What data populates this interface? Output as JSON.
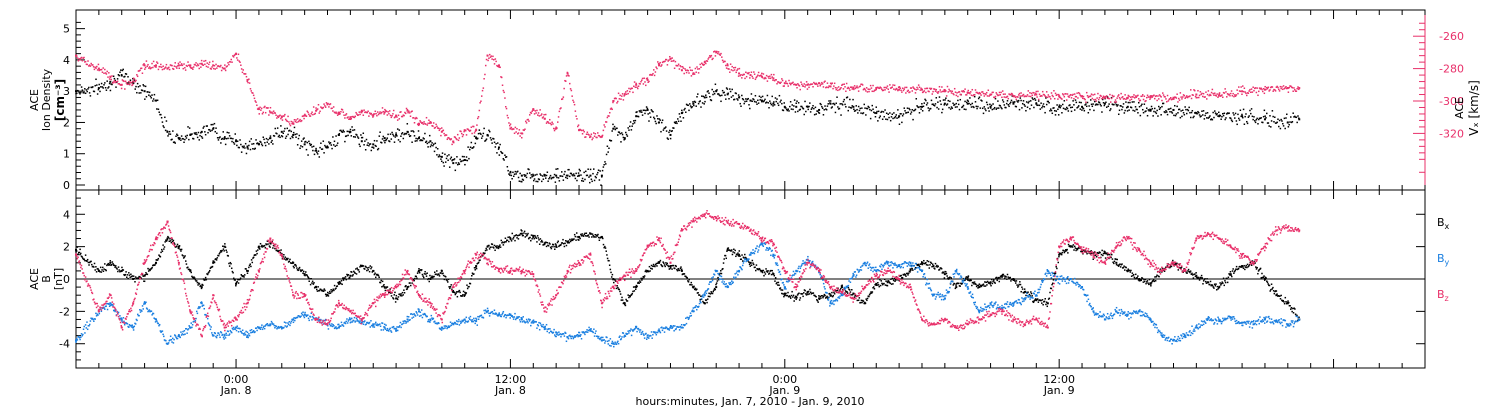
{
  "chart_data": [
    {
      "type": "scatter",
      "panel": "top",
      "ylabel": [
        "ACE",
        "Ion Density",
        "[cm⁻³]"
      ],
      "ylim": [
        0,
        5.5
      ],
      "yticks": [
        "0",
        "1",
        "2",
        "3",
        "4",
        "5"
      ],
      "y2label": [
        "ACE",
        "Vₓ [km/s]"
      ],
      "y2lim": [
        -250,
        -350
      ],
      "y2ticks": [
        "-260",
        "-280",
        "-300",
        "-320"
      ],
      "x_unit": "hours since Jan. 7, 2010 00:00",
      "xlim": [
        17,
        76
      ],
      "series": [
        {
          "axis": "left",
          "color": "#000000",
          "x": [
            17,
            18,
            18.5,
            19,
            19.5,
            20,
            20.5,
            21,
            21.5,
            22,
            22.5,
            23,
            23.5,
            24,
            24.5,
            25,
            25.5,
            26,
            26.5,
            27,
            27.5,
            28,
            28.5,
            29,
            29.5,
            30,
            30.5,
            31,
            31.5,
            32,
            32.5,
            33,
            33.5,
            34,
            34.5,
            35,
            35.5,
            36,
            36.5,
            37,
            37.5,
            38,
            38.5,
            39,
            39.5,
            40,
            40.5,
            41,
            41.5,
            42,
            42.5,
            43,
            43.5,
            44,
            44.5,
            45,
            45.5,
            46,
            46.5,
            47,
            47.5,
            48,
            48.5,
            49,
            49.5,
            50,
            51,
            52,
            53,
            54,
            55,
            56,
            57,
            58,
            59,
            60,
            61,
            62,
            63,
            64,
            65,
            66,
            67,
            68,
            69,
            70,
            70.5
          ],
          "y": [
            3.0,
            3.1,
            3.3,
            3.5,
            3.3,
            3.0,
            2.7,
            1.7,
            1.5,
            1.6,
            1.7,
            1.8,
            1.5,
            1.4,
            1.2,
            1.3,
            1.5,
            1.7,
            1.6,
            1.3,
            1.1,
            1.2,
            1.6,
            1.7,
            1.4,
            1.3,
            1.5,
            1.6,
            1.7,
            1.5,
            1.4,
            0.9,
            0.7,
            0.8,
            1.5,
            1.6,
            1.2,
            0.4,
            0.3,
            0.3,
            0.3,
            0.3,
            0.3,
            0.3,
            0.3,
            0.3,
            1.8,
            1.5,
            2.2,
            2.4,
            2.0,
            1.6,
            2.3,
            2.6,
            2.8,
            3.0,
            2.9,
            2.8,
            2.7,
            2.7,
            2.6,
            2.5,
            2.5,
            2.5,
            2.4,
            2.6,
            2.5,
            2.3,
            2.2,
            2.5,
            2.6,
            2.6,
            2.5,
            2.6,
            2.6,
            2.5,
            2.5,
            2.6,
            2.5,
            2.4,
            2.4,
            2.3,
            2.2,
            2.2,
            2.1,
            2.0,
            2.1
          ]
        },
        {
          "axis": "right",
          "color": "#e8306a",
          "x": [
            17,
            18,
            18.5,
            19,
            19.5,
            20,
            20.5,
            21,
            21.5,
            22,
            22.5,
            23,
            23.5,
            24,
            24.5,
            25,
            25.5,
            26,
            26.5,
            27,
            27.5,
            28,
            28.5,
            29,
            29.5,
            30,
            30.5,
            31,
            31.5,
            32,
            32.5,
            33,
            33.5,
            34,
            34.5,
            35,
            35.5,
            36,
            36.5,
            37,
            37.5,
            38,
            38.5,
            39,
            39.5,
            40,
            40.5,
            41,
            41.5,
            42,
            42.5,
            43,
            43.5,
            44,
            44.5,
            45,
            45.5,
            46,
            46.5,
            47,
            47.5,
            48,
            48.5,
            49,
            49.5,
            50,
            51,
            52,
            53,
            54,
            55,
            56,
            57,
            58,
            59,
            60,
            61,
            62,
            63,
            64,
            65,
            66,
            67,
            68,
            69,
            70,
            70.5
          ],
          "y": [
            -272,
            -280,
            -285,
            -290,
            -288,
            -278,
            -278,
            -280,
            -278,
            -278,
            -277,
            -278,
            -280,
            -271,
            -287,
            -305,
            -307,
            -310,
            -314,
            -309,
            -306,
            -302,
            -308,
            -310,
            -306,
            -309,
            -307,
            -309,
            -306,
            -314,
            -313,
            -319,
            -325,
            -318,
            -318,
            -272,
            -278,
            -317,
            -320,
            -305,
            -311,
            -317,
            -283,
            -318,
            -322,
            -322,
            -300,
            -296,
            -290,
            -287,
            -278,
            -274,
            -281,
            -283,
            -276,
            -270,
            -278,
            -283,
            -284,
            -285,
            -286,
            -289,
            -290,
            -290,
            -289,
            -291,
            -292,
            -292,
            -293,
            -293,
            -294,
            -295,
            -296,
            -297,
            -296,
            -297,
            -297,
            -298,
            -298,
            -297,
            -298,
            -296,
            -296,
            -294,
            -293,
            -292,
            -292
          ]
        }
      ]
    },
    {
      "type": "scatter",
      "panel": "bottom",
      "ylabel": [
        "ACE",
        "B",
        "[nT]"
      ],
      "ylim": [
        -5.5,
        5.5
      ],
      "yticks": [
        "-4",
        "-2",
        "0",
        "2",
        "4"
      ],
      "xlabel": "hours:minutes, Jan.  7, 2010 - Jan.  9, 2010",
      "x_unit": "hours since Jan. 7, 2010 00:00",
      "xlim": [
        17,
        76
      ],
      "xticks": [
        {
          "x": 24,
          "time": "0:00",
          "date": "Jan. 8"
        },
        {
          "x": 36,
          "time": "12:00",
          "date": "Jan. 8"
        },
        {
          "x": 48,
          "time": "0:00",
          "date": "Jan. 9"
        },
        {
          "x": 60,
          "time": "12:00",
          "date": "Jan. 9"
        }
      ],
      "series": [
        {
          "name_base": "B",
          "name_sub": "x",
          "color": "#000000",
          "x": [
            17,
            18,
            18.5,
            19,
            19.5,
            20,
            20.5,
            21,
            21.5,
            22,
            22.5,
            23,
            23.5,
            24,
            24.5,
            25,
            25.5,
            26,
            26.5,
            27,
            27.5,
            28,
            28.5,
            29,
            29.5,
            30,
            30.5,
            31,
            31.5,
            32,
            32.5,
            33,
            33.5,
            34,
            34.5,
            35,
            35.5,
            36,
            36.5,
            37,
            37.5,
            38,
            38.5,
            39,
            39.5,
            40,
            40.5,
            41,
            41.5,
            42,
            42.5,
            43,
            43.5,
            44,
            44.5,
            45,
            45.5,
            46,
            46.5,
            47,
            47.5,
            48,
            48.5,
            49,
            49.5,
            50,
            50.5,
            51,
            51.5,
            52,
            52.5,
            53,
            53.5,
            54,
            54.5,
            55,
            55.5,
            56,
            56.5,
            57,
            57.5,
            58,
            58.5,
            59,
            59.5,
            60,
            60.5,
            61,
            61.5,
            62,
            62.5,
            63,
            63.5,
            64,
            64.5,
            65,
            65.5,
            66,
            66.5,
            67,
            67.5,
            68,
            68.5,
            69,
            69.5,
            70,
            70.5
          ],
          "y": [
            1.8,
            0.5,
            1.0,
            0.5,
            0.0,
            0.2,
            1.0,
            2.5,
            2.0,
            0.5,
            -0.5,
            1.0,
            2.0,
            -0.3,
            0.5,
            2.0,
            2.2,
            1.5,
            1.0,
            0.3,
            -0.5,
            -1.0,
            -0.3,
            0.2,
            0.8,
            0.5,
            -0.5,
            -1.2,
            -0.5,
            0.5,
            0.0,
            0.5,
            -0.8,
            -1.0,
            0.8,
            2.0,
            2.0,
            2.5,
            2.8,
            2.6,
            2.2,
            2.0,
            2.3,
            2.6,
            2.8,
            2.6,
            0.0,
            -1.5,
            -0.5,
            0.5,
            1.0,
            0.8,
            0.5,
            -0.5,
            -1.5,
            -0.5,
            1.8,
            1.5,
            1.0,
            0.5,
            0.3,
            -1.0,
            -1.1,
            -0.8,
            -1.2,
            -1.0,
            -0.5,
            -0.9,
            -1.5,
            -0.3,
            -0.2,
            0.0,
            0.6,
            1.0,
            0.8,
            0.3,
            -0.5,
            0.1,
            -0.5,
            -0.2,
            0.2,
            0.0,
            -0.8,
            -1.3,
            -1.5,
            1.5,
            2.0,
            1.8,
            1.5,
            1.6,
            1.0,
            0.5,
            0.0,
            -0.3,
            0.5,
            1.0,
            0.5,
            0.2,
            -0.2,
            -0.5,
            0.3,
            0.8,
            1.0,
            0.0,
            -1.0,
            -1.5,
            -2.5
          ]
        },
        {
          "name_base": "B",
          "name_sub": "y",
          "color": "#1a7fe0",
          "x": [
            17,
            18,
            18.5,
            19,
            19.5,
            20,
            20.5,
            21,
            21.5,
            22,
            22.5,
            23,
            23.5,
            24,
            24.5,
            25,
            25.5,
            26,
            26.5,
            27,
            27.5,
            28,
            28.5,
            29,
            29.5,
            30,
            30.5,
            31,
            31.5,
            32,
            32.5,
            33,
            33.5,
            34,
            34.5,
            35,
            35.5,
            36,
            36.5,
            37,
            37.5,
            38,
            38.5,
            39,
            39.5,
            40,
            40.5,
            41,
            41.5,
            42,
            42.5,
            43,
            43.5,
            44,
            44.5,
            45,
            45.5,
            46,
            46.5,
            47,
            47.5,
            48,
            48.5,
            49,
            49.5,
            50,
            50.5,
            51,
            51.5,
            52,
            52.5,
            53,
            53.5,
            54,
            54.5,
            55,
            55.5,
            56,
            56.5,
            57,
            57.5,
            58,
            58.5,
            59,
            59.5,
            60,
            60.5,
            61,
            61.5,
            62,
            62.5,
            63,
            63.5,
            64,
            64.5,
            65,
            65.5,
            66,
            66.5,
            67,
            67.5,
            68,
            68.5,
            69,
            69.5,
            70,
            70.5
          ],
          "y": [
            -3.8,
            -2.0,
            -1.5,
            -2.5,
            -3.0,
            -1.5,
            -2.5,
            -4.0,
            -3.5,
            -3.0,
            -1.5,
            -3.5,
            -3.5,
            -3.0,
            -3.5,
            -3.0,
            -2.8,
            -3.0,
            -2.5,
            -2.2,
            -2.5,
            -2.8,
            -3.0,
            -2.5,
            -2.7,
            -2.8,
            -3.0,
            -3.2,
            -2.5,
            -2.0,
            -2.5,
            -3.0,
            -2.8,
            -2.5,
            -2.6,
            -2.0,
            -2.2,
            -2.2,
            -2.5,
            -2.7,
            -3.0,
            -3.3,
            -3.6,
            -3.5,
            -3.2,
            -3.8,
            -4.0,
            -3.5,
            -3.0,
            -3.6,
            -3.2,
            -3.0,
            -3.0,
            -2.0,
            -1.0,
            0.5,
            -0.5,
            0.5,
            1.5,
            2.2,
            1.5,
            -0.5,
            0.5,
            1.2,
            0.5,
            -1.5,
            -1.0,
            0.2,
            1.0,
            0.5,
            1.0,
            0.8,
            1.0,
            0.5,
            -1.0,
            -1.2,
            0.5,
            -0.5,
            -2.0,
            -1.5,
            -1.8,
            -1.5,
            -1.2,
            -1.0,
            0.5,
            0.0,
            0.0,
            -0.5,
            -2.0,
            -2.5,
            -2.0,
            -2.2,
            -2.0,
            -2.5,
            -3.5,
            -3.8,
            -3.5,
            -3.0,
            -2.5,
            -2.6,
            -2.4,
            -2.7,
            -2.8,
            -2.5,
            -2.6,
            -2.8,
            -2.5
          ]
        },
        {
          "name_base": "B",
          "name_sub": "z",
          "color": "#e8306a",
          "x": [
            17,
            18,
            18.5,
            19,
            19.5,
            20,
            20.5,
            21,
            21.5,
            22,
            22.5,
            23,
            23.5,
            24,
            24.5,
            25,
            25.5,
            26,
            26.5,
            27,
            27.5,
            28,
            28.5,
            29,
            29.5,
            30,
            30.5,
            31,
            31.5,
            32,
            32.5,
            33,
            33.5,
            34,
            34.5,
            35,
            35.5,
            36,
            36.5,
            37,
            37.5,
            38,
            38.5,
            39,
            39.5,
            40,
            40.5,
            41,
            41.5,
            42,
            42.5,
            43,
            43.5,
            44,
            44.5,
            45,
            45.5,
            46,
            46.5,
            47,
            47.5,
            48,
            48.5,
            49,
            49.5,
            50,
            50.5,
            51,
            51.5,
            52,
            52.5,
            53,
            53.5,
            54,
            54.5,
            55,
            55.5,
            56,
            56.5,
            57,
            57.5,
            58,
            58.5,
            59,
            59.5,
            60,
            60.5,
            61,
            61.5,
            62,
            62.5,
            63,
            63.5,
            64,
            64.5,
            65,
            65.5,
            66,
            66.5,
            67,
            67.5,
            68,
            68.5,
            69,
            69.5,
            70,
            70.5
          ],
          "y": [
            1.5,
            -2.0,
            -1.0,
            -3.0,
            -1.5,
            1.0,
            2.5,
            3.5,
            1.0,
            -2.0,
            -3.5,
            -1.0,
            -3.0,
            -2.5,
            -1.5,
            0.5,
            2.5,
            1.5,
            -1.0,
            -1.0,
            -2.5,
            -2.8,
            -1.5,
            -2.0,
            -2.5,
            -1.5,
            -1.0,
            -0.5,
            0.5,
            -1.0,
            -1.5,
            -2.5,
            -0.5,
            0.5,
            1.5,
            1.2,
            0.6,
            0.5,
            0.5,
            0.3,
            -2.0,
            -1.0,
            0.5,
            1.0,
            1.5,
            -1.5,
            -0.5,
            0.2,
            0.5,
            2.0,
            2.5,
            1.0,
            3.0,
            3.6,
            4.0,
            3.8,
            3.5,
            3.4,
            3.0,
            2.5,
            2.2,
            0.5,
            -0.5,
            1.0,
            0.5,
            -0.5,
            -0.8,
            -1.2,
            -0.5,
            0.2,
            0.5,
            0.0,
            -0.5,
            -2.5,
            -2.8,
            -2.5,
            -3.0,
            -2.8,
            -2.5,
            -2.2,
            -2.0,
            -2.5,
            -2.8,
            -2.5,
            -3.0,
            2.0,
            2.5,
            1.8,
            1.5,
            1.0,
            2.0,
            2.5,
            1.8,
            1.0,
            0.5,
            1.0,
            0.5,
            2.5,
            2.8,
            2.5,
            2.0,
            1.5,
            1.0,
            2.0,
            3.0,
            3.2,
            3.0
          ]
        }
      ]
    }
  ]
}
